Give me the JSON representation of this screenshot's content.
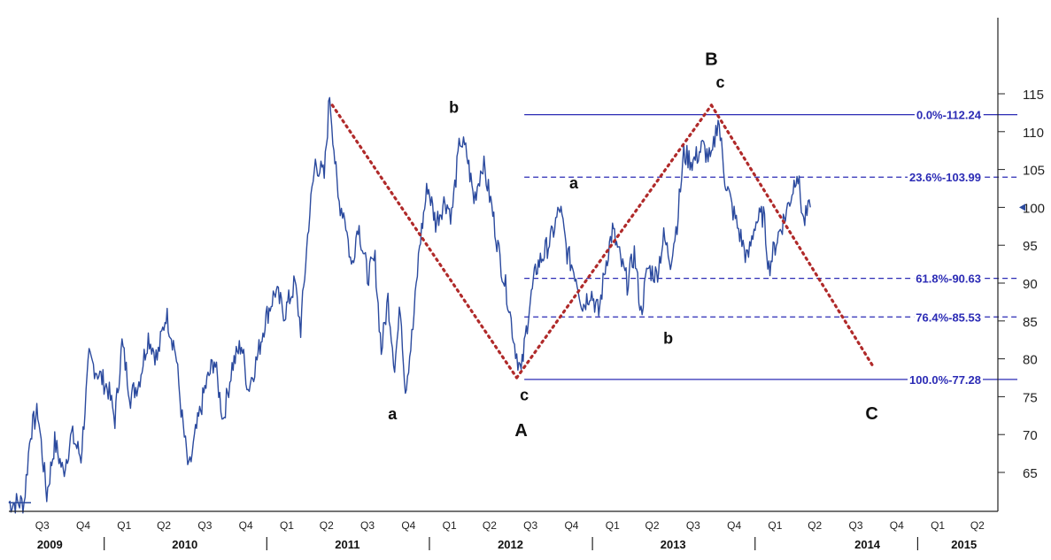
{
  "chart_data": {
    "type": "line",
    "title": "",
    "xlabel": "",
    "ylabel": "",
    "ylim": [
      60,
      120
    ],
    "y_ticks": [
      65,
      70,
      75,
      80,
      85,
      90,
      95,
      100,
      105,
      110,
      115
    ],
    "x_range": [
      "2009-06-01",
      "2015-06-30"
    ],
    "quarter_ticks": [
      {
        "label": "Q3",
        "date": "2009-08-15"
      },
      {
        "label": "Q4",
        "date": "2009-11-15"
      },
      {
        "label": "Q1",
        "date": "2010-02-15"
      },
      {
        "label": "Q2",
        "date": "2010-05-15"
      },
      {
        "label": "Q3",
        "date": "2010-08-15"
      },
      {
        "label": "Q4",
        "date": "2010-11-15"
      },
      {
        "label": "Q1",
        "date": "2011-02-15"
      },
      {
        "label": "Q2",
        "date": "2011-05-15"
      },
      {
        "label": "Q3",
        "date": "2011-08-15"
      },
      {
        "label": "Q4",
        "date": "2011-11-15"
      },
      {
        "label": "Q1",
        "date": "2012-02-15"
      },
      {
        "label": "Q2",
        "date": "2012-05-15"
      },
      {
        "label": "Q3",
        "date": "2012-08-15"
      },
      {
        "label": "Q4",
        "date": "2012-11-15"
      },
      {
        "label": "Q1",
        "date": "2013-02-15"
      },
      {
        "label": "Q2",
        "date": "2013-05-15"
      },
      {
        "label": "Q3",
        "date": "2013-08-15"
      },
      {
        "label": "Q4",
        "date": "2013-11-15"
      },
      {
        "label": "Q1",
        "date": "2014-02-15"
      },
      {
        "label": "Q2",
        "date": "2014-05-15"
      },
      {
        "label": "Q3",
        "date": "2014-08-15"
      },
      {
        "label": "Q4",
        "date": "2014-11-15"
      },
      {
        "label": "Q1",
        "date": "2015-02-15"
      },
      {
        "label": "Q2",
        "date": "2015-05-15"
      }
    ],
    "year_labels": [
      {
        "label": "2009",
        "date": "2009-09-01"
      },
      {
        "label": "2010",
        "date": "2010-07-01"
      },
      {
        "label": "2011",
        "date": "2011-07-01"
      },
      {
        "label": "2012",
        "date": "2012-07-01"
      },
      {
        "label": "2013",
        "date": "2013-07-01"
      },
      {
        "label": "2014",
        "date": "2014-09-10"
      },
      {
        "label": "2015",
        "date": "2015-04-15"
      }
    ],
    "year_separators": [
      "2010-01-01",
      "2011-01-01",
      "2012-01-01",
      "2013-01-01",
      "2014-01-01",
      "2015-01-01"
    ],
    "series": [
      {
        "color": "#2b4a9e",
        "points": [
          [
            "2009-06-01",
            61
          ],
          [
            "2009-07-05",
            61
          ],
          [
            "2009-07-20",
            70.5
          ],
          [
            "2009-08-05",
            73
          ],
          [
            "2009-08-25",
            62
          ],
          [
            "2009-09-12",
            69
          ],
          [
            "2009-10-01",
            65
          ],
          [
            "2009-10-20",
            70
          ],
          [
            "2009-11-10",
            67
          ],
          [
            "2009-11-28",
            80
          ],
          [
            "2009-12-20",
            78
          ],
          [
            "2010-01-10",
            76
          ],
          [
            "2010-01-25",
            72
          ],
          [
            "2010-02-10",
            82
          ],
          [
            "2010-03-01",
            75
          ],
          [
            "2010-03-20",
            77
          ],
          [
            "2010-04-10",
            83
          ],
          [
            "2010-04-30",
            80
          ],
          [
            "2010-05-20",
            86
          ],
          [
            "2010-06-10",
            81
          ],
          [
            "2010-06-25",
            72
          ],
          [
            "2010-07-10",
            65
          ],
          [
            "2010-07-25",
            70
          ],
          [
            "2010-08-15",
            76
          ],
          [
            "2010-09-05",
            80
          ],
          [
            "2010-09-25",
            72
          ],
          [
            "2010-10-15",
            79
          ],
          [
            "2010-11-05",
            82
          ],
          [
            "2010-11-20",
            76
          ],
          [
            "2010-12-10",
            80
          ],
          [
            "2010-12-28",
            85
          ],
          [
            "2011-01-20",
            89
          ],
          [
            "2011-02-10",
            86
          ],
          [
            "2011-03-05",
            90
          ],
          [
            "2011-03-18",
            84
          ],
          [
            "2011-04-05",
            98
          ],
          [
            "2011-04-20",
            106
          ],
          [
            "2011-05-10",
            104
          ],
          [
            "2011-05-22",
            115
          ],
          [
            "2011-06-10",
            101
          ],
          [
            "2011-06-25",
            99
          ],
          [
            "2011-07-10",
            92
          ],
          [
            "2011-07-25",
            98
          ],
          [
            "2011-08-15",
            91
          ],
          [
            "2011-09-01",
            93
          ],
          [
            "2011-09-15",
            81
          ],
          [
            "2011-09-30",
            88
          ],
          [
            "2011-10-15",
            79
          ],
          [
            "2011-10-28",
            87
          ],
          [
            "2011-11-08",
            76
          ],
          [
            "2011-11-25",
            84
          ],
          [
            "2011-12-10",
            95
          ],
          [
            "2011-12-28",
            103
          ],
          [
            "2012-01-15",
            98
          ],
          [
            "2012-02-05",
            101
          ],
          [
            "2012-02-20",
            99
          ],
          [
            "2012-03-10",
            109
          ],
          [
            "2012-03-25",
            107
          ],
          [
            "2012-04-10",
            101
          ],
          [
            "2012-04-30",
            106
          ],
          [
            "2012-05-20",
            100
          ],
          [
            "2012-06-05",
            94
          ],
          [
            "2012-06-25",
            88
          ],
          [
            "2012-07-10",
            82
          ],
          [
            "2012-07-25",
            78
          ],
          [
            "2012-08-10",
            86
          ],
          [
            "2012-08-28",
            92
          ],
          [
            "2012-09-15",
            94
          ],
          [
            "2012-10-01",
            96
          ],
          [
            "2012-10-20",
            100
          ],
          [
            "2012-11-05",
            94
          ],
          [
            "2012-11-25",
            91
          ],
          [
            "2012-12-10",
            87
          ],
          [
            "2012-12-28",
            89
          ],
          [
            "2013-01-15",
            86
          ],
          [
            "2013-02-01",
            93
          ],
          [
            "2013-02-15",
            97
          ],
          [
            "2013-03-05",
            93
          ],
          [
            "2013-03-20",
            90
          ],
          [
            "2013-04-05",
            94
          ],
          [
            "2013-04-20",
            86
          ],
          [
            "2013-05-05",
            92
          ],
          [
            "2013-05-25",
            91
          ],
          [
            "2013-06-10",
            96
          ],
          [
            "2013-06-25",
            93
          ],
          [
            "2013-07-10",
            98
          ],
          [
            "2013-07-25",
            107
          ],
          [
            "2013-08-15",
            106
          ],
          [
            "2013-09-05",
            108
          ],
          [
            "2013-09-25",
            106
          ],
          [
            "2013-10-10",
            112
          ],
          [
            "2013-10-25",
            104
          ],
          [
            "2013-11-10",
            100
          ],
          [
            "2013-11-30",
            96
          ],
          [
            "2013-12-15",
            93
          ],
          [
            "2014-01-01",
            98
          ],
          [
            "2014-01-20",
            99
          ],
          [
            "2014-02-01",
            92
          ],
          [
            "2014-02-20",
            96
          ],
          [
            "2014-03-10",
            99
          ],
          [
            "2014-03-25",
            102
          ],
          [
            "2014-04-05",
            105
          ],
          [
            "2014-04-20",
            98
          ],
          [
            "2014-05-05",
            100
          ]
        ]
      }
    ],
    "fib_levels": [
      {
        "pct": "0.0%",
        "value": 112.24,
        "style": "solid"
      },
      {
        "pct": "23.6%",
        "value": 103.99,
        "style": "dashed"
      },
      {
        "pct": "61.8%",
        "value": 90.63,
        "style": "dashed"
      },
      {
        "pct": "76.4%",
        "value": 85.53,
        "style": "dashed"
      },
      {
        "pct": "100.0%",
        "value": 77.28,
        "style": "solid"
      }
    ],
    "fib_line_start": "2012-08-01",
    "trendlines": [
      {
        "color": "#b02a2a",
        "points": [
          [
            "2011-05-28",
            113.5
          ],
          [
            "2012-07-15",
            77.5
          ]
        ]
      },
      {
        "color": "#b02a2a",
        "points": [
          [
            "2012-07-15",
            77.5
          ],
          [
            "2013-09-25",
            113.5
          ]
        ]
      },
      {
        "color": "#b02a2a",
        "points": [
          [
            "2013-09-25",
            113.5
          ],
          [
            "2014-09-25",
            78.8
          ]
        ]
      }
    ],
    "wave_labels": [
      {
        "text": "a",
        "date": "2011-10-10",
        "y": 72,
        "size": "sm"
      },
      {
        "text": "b",
        "date": "2012-02-25",
        "y": 112.5,
        "size": "sm"
      },
      {
        "text": "c",
        "date": "2012-08-01",
        "y": 74.5,
        "size": "sm"
      },
      {
        "text": "A",
        "date": "2012-07-25",
        "y": 69.8,
        "size": "lg"
      },
      {
        "text": "a",
        "date": "2012-11-20",
        "y": 102.5,
        "size": "sm"
      },
      {
        "text": "b",
        "date": "2013-06-20",
        "y": 82,
        "size": "sm"
      },
      {
        "text": "B",
        "date": "2013-09-25",
        "y": 118.8,
        "size": "lg"
      },
      {
        "text": "c",
        "date": "2013-10-15",
        "y": 115.8,
        "size": "sm"
      },
      {
        "text": "C",
        "date": "2014-09-20",
        "y": 72,
        "size": "lg"
      }
    ],
    "last_price_marker": {
      "value": 100,
      "color": "#2b4a9e"
    }
  }
}
